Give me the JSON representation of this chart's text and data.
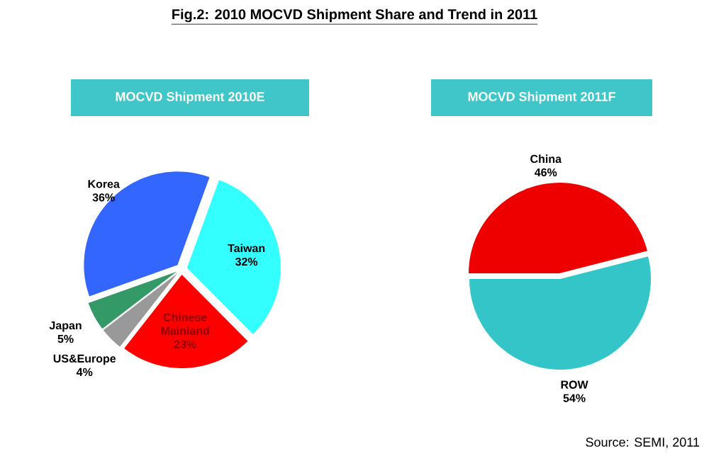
{
  "chart_data": [
    {
      "type": "pie",
      "title": "Fig.2: 2010 MOCVD Shipment Share and Trend in 2011",
      "subtitle": "MOCVD Shipment 2010E",
      "categories": [
        "Korea",
        "Taiwan",
        "Chinese Mainland",
        "US&Europe",
        "Japan"
      ],
      "values": [
        36,
        32,
        23,
        4,
        5
      ],
      "value_labels": [
        "36%",
        "32%",
        "23%",
        "4%",
        "5%"
      ],
      "colors": [
        "#3366ff",
        "#33ffff",
        "#ff0000",
        "#999999",
        "#339966"
      ]
    },
    {
      "type": "pie",
      "title": "MOCVD Shipment 2011F",
      "categories": [
        "China",
        "ROW"
      ],
      "values": [
        46,
        54
      ],
      "value_labels": [
        "46%",
        "54%"
      ],
      "colors": [
        "#ee0000",
        "#33c5c8"
      ],
      "annotations": [
        "Source: SEMI, 2011"
      ]
    }
  ]
}
